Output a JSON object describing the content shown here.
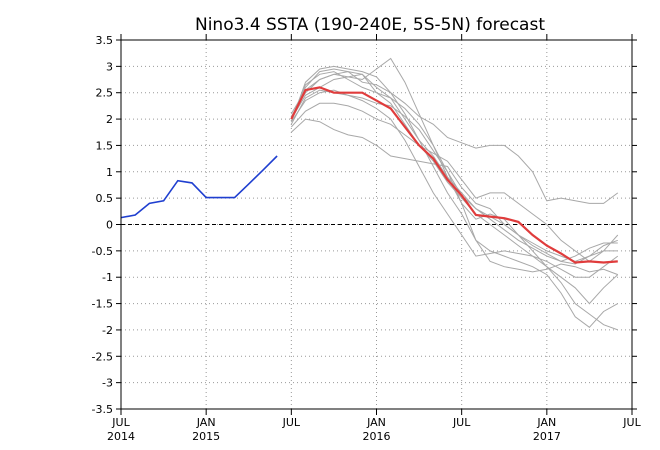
{
  "chart_data": {
    "type": "line",
    "title": "Nino3.4 SSTA (190-240E, 5S-5N) forecast",
    "xlabel": "",
    "ylabel": "",
    "ylim": [
      -3.5,
      3.5
    ],
    "xlim": [
      "2014-07",
      "2017-07"
    ],
    "grid": true,
    "reference_line": 0,
    "yticks": [
      "3.5",
      "3",
      "2.5",
      "2",
      "1.5",
      "1",
      "0.5",
      "0",
      "-0.5",
      "-1",
      "-1.5",
      "-2",
      "-2.5",
      "-3",
      "-3.5"
    ],
    "xticks": [
      {
        "x": "2014-07",
        "label": "JUL",
        "year": "2014"
      },
      {
        "x": "2015-01",
        "label": "JAN",
        "year": "2015"
      },
      {
        "x": "2015-07",
        "label": "JUL",
        "year": ""
      },
      {
        "x": "2016-01",
        "label": "JAN",
        "year": "2016"
      },
      {
        "x": "2016-07",
        "label": "JUL",
        "year": ""
      },
      {
        "x": "2017-01",
        "label": "JAN",
        "year": "2017"
      },
      {
        "x": "2017-07",
        "label": "JUL",
        "year": ""
      }
    ],
    "observed": {
      "color": "#1f3fd0",
      "x": [
        "2014-07",
        "2014-08",
        "2014-09",
        "2014-10",
        "2014-11",
        "2014-12",
        "2015-01",
        "2015-02",
        "2015-03",
        "2015-04",
        "2015-05",
        "2015-06"
      ],
      "y": [
        0.13,
        0.18,
        0.4,
        0.45,
        0.83,
        0.79,
        0.51,
        0.51,
        0.51,
        0.77,
        1.03,
        1.3
      ]
    },
    "ensemble_mean": {
      "color": "#e03c3c",
      "x": [
        "2015-07",
        "2015-08",
        "2015-09",
        "2015-10",
        "2015-11",
        "2015-12",
        "2016-01",
        "2016-02",
        "2016-03",
        "2016-04",
        "2016-05",
        "2016-06",
        "2016-07",
        "2016-08",
        "2016-09",
        "2016-10",
        "2016-11",
        "2016-12",
        "2017-01",
        "2017-02",
        "2017-03",
        "2017-04",
        "2017-05",
        "2017-06"
      ],
      "y": [
        2.0,
        2.55,
        2.6,
        2.5,
        2.5,
        2.5,
        2.35,
        2.2,
        1.85,
        1.5,
        1.25,
        0.85,
        0.55,
        0.18,
        0.15,
        0.12,
        0.05,
        -0.2,
        -0.4,
        -0.55,
        -0.72,
        -0.7,
        -0.72,
        -0.7
      ]
    },
    "members_color": "#a8a8a8",
    "members_x": [
      "2015-07",
      "2015-08",
      "2015-09",
      "2015-10",
      "2015-11",
      "2015-12",
      "2016-01",
      "2016-02",
      "2016-03",
      "2016-04",
      "2016-05",
      "2016-06",
      "2016-07",
      "2016-08",
      "2016-09",
      "2016-10",
      "2016-11",
      "2016-12",
      "2017-01",
      "2017-02",
      "2017-03",
      "2017-04",
      "2017-05",
      "2017-06"
    ],
    "members": [
      [
        2.0,
        2.6,
        2.9,
        2.95,
        2.9,
        2.85,
        2.5,
        2.3,
        1.9,
        1.5,
        1.2,
        0.8,
        0.5,
        0.2,
        0.0,
        -0.2,
        -0.4,
        -0.6,
        -0.8,
        -1.1,
        -1.5,
        -1.7,
        -1.9,
        -2.0
      ],
      [
        1.95,
        2.7,
        2.95,
        3.0,
        2.95,
        2.9,
        2.8,
        2.5,
        2.1,
        1.6,
        1.1,
        0.6,
        0.2,
        -0.3,
        -0.5,
        -0.6,
        -0.7,
        -0.8,
        -0.95,
        -1.3,
        -1.75,
        -1.95,
        -1.65,
        -1.5
      ],
      [
        2.0,
        2.65,
        2.85,
        2.9,
        2.75,
        2.6,
        2.5,
        2.4,
        2.2,
        1.9,
        1.5,
        1.0,
        0.4,
        -0.3,
        -0.7,
        -0.8,
        -0.85,
        -0.9,
        -0.85,
        -0.75,
        -0.8,
        -0.9,
        -0.85,
        -0.95
      ],
      [
        2.1,
        2.55,
        2.75,
        2.85,
        2.8,
        2.75,
        2.95,
        3.15,
        2.7,
        2.1,
        1.5,
        0.9,
        0.4,
        0.1,
        0.2,
        0.1,
        -0.2,
        -0.5,
        -0.8,
        -1.0,
        -1.2,
        -1.5,
        -1.2,
        -0.95
      ],
      [
        1.9,
        2.4,
        2.55,
        2.5,
        2.45,
        2.35,
        2.2,
        2.0,
        1.6,
        1.1,
        0.6,
        0.2,
        -0.2,
        -0.6,
        -0.55,
        -0.5,
        -0.55,
        -0.6,
        -0.7,
        -0.85,
        -1.0,
        -1.0,
        -0.8,
        -0.6
      ],
      [
        1.85,
        2.15,
        2.3,
        2.3,
        2.25,
        2.15,
        2.0,
        1.9,
        1.7,
        1.5,
        1.35,
        1.2,
        0.85,
        0.5,
        0.6,
        0.6,
        0.4,
        0.2,
        0.0,
        -0.3,
        -0.5,
        -0.7,
        -0.5,
        -0.2
      ],
      [
        1.75,
        2.0,
        1.95,
        1.8,
        1.7,
        1.65,
        1.5,
        1.3,
        1.25,
        1.2,
        1.15,
        1.1,
        0.7,
        0.4,
        0.3,
        0.0,
        -0.2,
        -0.4,
        -0.55,
        -0.7,
        -0.75,
        -0.6,
        -0.4,
        -0.3
      ],
      [
        2.05,
        2.5,
        2.75,
        2.85,
        2.9,
        2.7,
        2.65,
        2.5,
        2.3,
        2.05,
        1.9,
        1.65,
        1.55,
        1.45,
        1.5,
        1.5,
        1.3,
        1.0,
        0.45,
        0.5,
        0.45,
        0.4,
        0.4,
        0.6
      ],
      [
        2.0,
        2.45,
        2.6,
        2.75,
        2.8,
        2.85,
        2.6,
        2.4,
        2.0,
        1.6,
        1.3,
        0.9,
        0.6,
        0.3,
        0.1,
        -0.1,
        -0.3,
        -0.45,
        -0.6,
        -0.7,
        -0.6,
        -0.45,
        -0.35,
        -0.35
      ],
      [
        1.95,
        2.35,
        2.5,
        2.55,
        2.45,
        2.4,
        2.3,
        2.25,
        2.05,
        1.8,
        1.4,
        1.0,
        0.55,
        0.3,
        0.15,
        0.0,
        -0.2,
        -0.35,
        -0.5,
        -0.6,
        -0.7,
        -0.6,
        -0.5,
        -0.5
      ]
    ]
  }
}
